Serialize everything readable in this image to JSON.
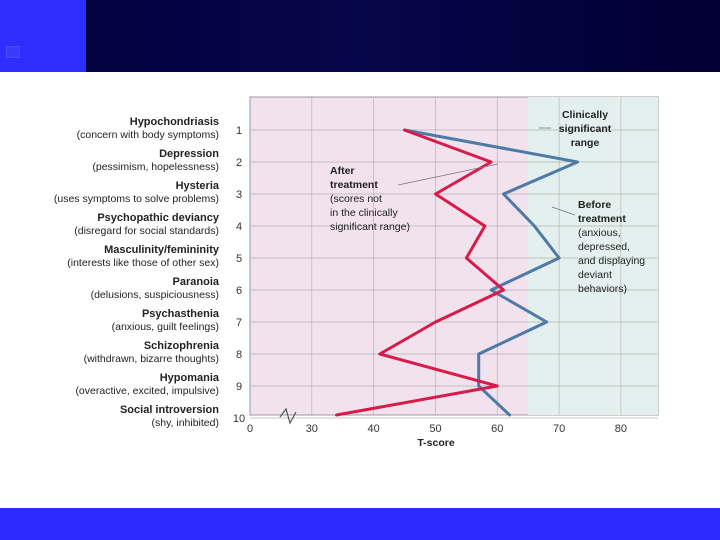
{
  "colors": {
    "header_bar": "#00003c",
    "header_accent": "#2d2dff",
    "footer_bar": "#2b2bff",
    "plot_bg": "#f1e2ee",
    "clinical_bg": "#e4f0ee",
    "after_line": "#d81b4a",
    "before_line": "#4e7aa8",
    "grid": "#b5b5b5"
  },
  "chart_data": {
    "type": "line",
    "orientation": "horizontal-profile",
    "xlabel": "T-score",
    "x_ticks": [
      0,
      30,
      40,
      50,
      60,
      70,
      80
    ],
    "x_tick_labels": [
      "0",
      "30",
      "40",
      "50",
      "60",
      "70",
      "80"
    ],
    "x_axis_break": "between 0 and 30",
    "xlim": [
      20,
      86
    ],
    "clinically_significant_from": 65,
    "grid": true,
    "scales": [
      {
        "num": "1",
        "name": "Hypochondriasis",
        "desc": "(concern with body symptoms)"
      },
      {
        "num": "2",
        "name": "Depression",
        "desc": "(pessimism, hopelessness)"
      },
      {
        "num": "3",
        "name": "Hysteria",
        "desc": "(uses symptoms to solve problems)"
      },
      {
        "num": "4",
        "name": "Psychopathic deviancy",
        "desc": "(disregard for social standards)"
      },
      {
        "num": "5",
        "name": "Masculinity/femininity",
        "desc": "(interests like those of other sex)"
      },
      {
        "num": "6",
        "name": "Paranoia",
        "desc": "(delusions, suspiciousness)"
      },
      {
        "num": "7",
        "name": "Psychasthenia",
        "desc": "(anxious, guilt feelings)"
      },
      {
        "num": "8",
        "name": "Schizophrenia",
        "desc": "(withdrawn, bizarre thoughts)"
      },
      {
        "num": "9",
        "name": "Hypomania",
        "desc": "(overactive, excited, impulsive)"
      },
      {
        "num": "10",
        "name": "Social introversion",
        "desc": "(shy, inhibited)"
      }
    ],
    "series": [
      {
        "key": "before",
        "values": [
          45,
          73,
          61,
          66,
          70,
          59,
          68,
          57,
          57,
          62
        ]
      },
      {
        "key": "after",
        "values": [
          45,
          59,
          50,
          58,
          55,
          61,
          50,
          41,
          60,
          34
        ]
      }
    ],
    "annotations": {
      "clinical": [
        "Clinically",
        "significant",
        "range"
      ],
      "after_bold": [
        "After",
        "treatment"
      ],
      "after_text": [
        "(scores not",
        "in the clinically",
        "significant range)"
      ],
      "before_bold": [
        "Before",
        "treatment"
      ],
      "before_text": [
        "(anxious,",
        "depressed,",
        "and displaying",
        "deviant",
        "behaviors)"
      ]
    }
  }
}
